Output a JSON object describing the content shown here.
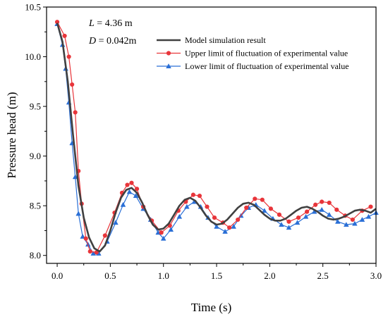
{
  "chart_data": {
    "type": "line",
    "xlabel": "Time (s)",
    "ylabel": "Pressure head (m)",
    "xlim": [
      -0.1,
      3.0
    ],
    "ylim": [
      7.92,
      10.5
    ],
    "xticks": [
      "0.0",
      "0.5",
      "1.0",
      "1.5",
      "2.0",
      "2.5",
      "3.0"
    ],
    "yticks": [
      "8.0",
      "8.5",
      "9.0",
      "9.5",
      "10.0",
      "10.5"
    ],
    "xtick_values": [
      0.0,
      0.5,
      1.0,
      1.5,
      2.0,
      2.5,
      3.0
    ],
    "ytick_values": [
      8.0,
      8.5,
      9.0,
      9.5,
      10.0,
      10.5
    ],
    "annotations": [
      {
        "var": "L",
        "rest": " = 4.36 m"
      },
      {
        "var": "D",
        "rest": " = 0.042m"
      }
    ],
    "legend_position": "top-right",
    "grid": false,
    "series": [
      {
        "name": "Model simulation result",
        "color": "#404040",
        "marker": "none",
        "x": [
          0.0,
          0.05,
          0.1,
          0.15,
          0.2,
          0.25,
          0.3,
          0.35,
          0.4,
          0.45,
          0.5,
          0.55,
          0.6,
          0.65,
          0.7,
          0.75,
          0.8,
          0.85,
          0.9,
          0.95,
          1.0,
          1.05,
          1.1,
          1.15,
          1.2,
          1.25,
          1.3,
          1.35,
          1.4,
          1.45,
          1.5,
          1.55,
          1.6,
          1.65,
          1.7,
          1.75,
          1.8,
          1.85,
          1.9,
          1.95,
          2.0,
          2.05,
          2.1,
          2.15,
          2.2,
          2.25,
          2.3,
          2.35,
          2.4,
          2.45,
          2.5,
          2.55,
          2.6,
          2.65,
          2.7,
          2.75,
          2.8,
          2.85,
          2.9,
          2.95,
          3.0
        ],
        "y": [
          10.34,
          10.15,
          9.75,
          9.2,
          8.7,
          8.38,
          8.18,
          8.07,
          8.04,
          8.1,
          8.25,
          8.43,
          8.58,
          8.66,
          8.68,
          8.63,
          8.53,
          8.41,
          8.31,
          8.26,
          8.27,
          8.32,
          8.41,
          8.5,
          8.56,
          8.58,
          8.55,
          8.48,
          8.4,
          8.34,
          8.31,
          8.32,
          8.36,
          8.42,
          8.48,
          8.52,
          8.53,
          8.51,
          8.46,
          8.41,
          8.37,
          8.35,
          8.35,
          8.37,
          8.41,
          8.45,
          8.48,
          8.49,
          8.47,
          8.44,
          8.4,
          8.37,
          8.36,
          8.37,
          8.39,
          8.42,
          8.45,
          8.46,
          8.45,
          8.43,
          8.47
        ]
      },
      {
        "name": "Upper limit of fluctuation of experimental value",
        "color": "#e8353a",
        "marker": "circle",
        "x": [
          0.0,
          0.07,
          0.11,
          0.14,
          0.17,
          0.2,
          0.23,
          0.27,
          0.31,
          0.37,
          0.45,
          0.54,
          0.61,
          0.66,
          0.7,
          0.75,
          0.81,
          0.89,
          0.98,
          1.06,
          1.14,
          1.21,
          1.28,
          1.34,
          1.41,
          1.48,
          1.56,
          1.62,
          1.7,
          1.78,
          1.86,
          1.93,
          2.01,
          2.09,
          2.18,
          2.27,
          2.35,
          2.43,
          2.49,
          2.56,
          2.63,
          2.71,
          2.78,
          2.87,
          2.95
        ],
        "y": [
          10.35,
          10.21,
          10.0,
          9.72,
          9.44,
          8.85,
          8.52,
          8.17,
          8.04,
          8.03,
          8.2,
          8.43,
          8.63,
          8.71,
          8.73,
          8.67,
          8.49,
          8.35,
          8.23,
          8.3,
          8.45,
          8.54,
          8.61,
          8.6,
          8.49,
          8.38,
          8.33,
          8.28,
          8.36,
          8.48,
          8.57,
          8.56,
          8.47,
          8.41,
          8.34,
          8.38,
          8.44,
          8.51,
          8.54,
          8.53,
          8.46,
          8.4,
          8.36,
          8.45,
          8.49
        ]
      },
      {
        "name": "Lower limit of fluctuation of experimental value",
        "color": "#2a6fd6",
        "marker": "triangle",
        "x": [
          0.0,
          0.05,
          0.08,
          0.11,
          0.14,
          0.17,
          0.2,
          0.24,
          0.29,
          0.34,
          0.39,
          0.47,
          0.55,
          0.62,
          0.68,
          0.74,
          0.81,
          0.88,
          0.95,
          1.0,
          1.07,
          1.15,
          1.22,
          1.29,
          1.35,
          1.42,
          1.5,
          1.58,
          1.66,
          1.73,
          1.8,
          1.87,
          1.95,
          2.03,
          2.11,
          2.18,
          2.26,
          2.34,
          2.42,
          2.49,
          2.56,
          2.64,
          2.72,
          2.8,
          2.87,
          2.93,
          3.0
        ],
        "y": [
          10.33,
          10.12,
          9.88,
          9.54,
          9.13,
          8.79,
          8.42,
          8.19,
          8.11,
          8.02,
          8.02,
          8.14,
          8.33,
          8.51,
          8.64,
          8.6,
          8.47,
          8.36,
          8.23,
          8.17,
          8.26,
          8.39,
          8.49,
          8.54,
          8.49,
          8.38,
          8.29,
          8.24,
          8.29,
          8.4,
          8.48,
          8.51,
          8.45,
          8.37,
          8.31,
          8.28,
          8.33,
          8.39,
          8.44,
          8.46,
          8.41,
          8.34,
          8.31,
          8.32,
          8.36,
          8.39,
          8.43
        ]
      }
    ]
  }
}
